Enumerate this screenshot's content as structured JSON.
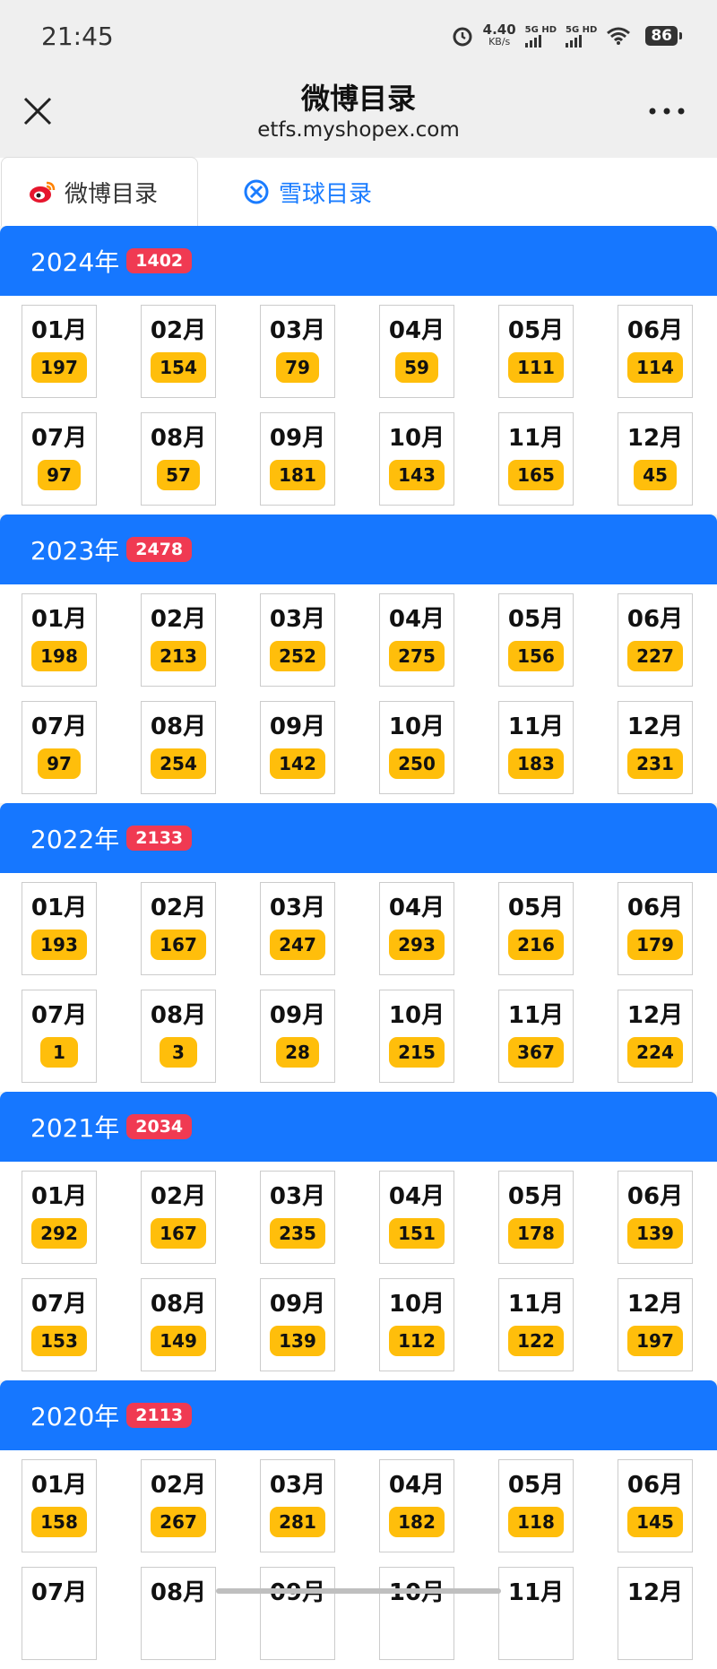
{
  "status": {
    "time": "21:45",
    "speed": "4.40",
    "speed_unit": "KB/s",
    "sig1": "5G HD",
    "sig2": "5G HD",
    "battery": "86"
  },
  "header": {
    "title": "微博目录",
    "url": "etfs.myshopex.com"
  },
  "tabs": [
    {
      "label": "微博目录",
      "active": true
    },
    {
      "label": "雪球目录",
      "active": false
    }
  ],
  "colors": {
    "accent": "#1677ff",
    "badge": "#f03a52",
    "count": "#ffbe0b"
  },
  "years": [
    {
      "year": "2024年",
      "total": "1402",
      "months": [
        {
          "m": "01月",
          "c": "197"
        },
        {
          "m": "02月",
          "c": "154"
        },
        {
          "m": "03月",
          "c": "79"
        },
        {
          "m": "04月",
          "c": "59"
        },
        {
          "m": "05月",
          "c": "111"
        },
        {
          "m": "06月",
          "c": "114"
        },
        {
          "m": "07月",
          "c": "97"
        },
        {
          "m": "08月",
          "c": "57"
        },
        {
          "m": "09月",
          "c": "181"
        },
        {
          "m": "10月",
          "c": "143"
        },
        {
          "m": "11月",
          "c": "165"
        },
        {
          "m": "12月",
          "c": "45"
        }
      ]
    },
    {
      "year": "2023年",
      "total": "2478",
      "months": [
        {
          "m": "01月",
          "c": "198"
        },
        {
          "m": "02月",
          "c": "213"
        },
        {
          "m": "03月",
          "c": "252"
        },
        {
          "m": "04月",
          "c": "275"
        },
        {
          "m": "05月",
          "c": "156"
        },
        {
          "m": "06月",
          "c": "227"
        },
        {
          "m": "07月",
          "c": "97"
        },
        {
          "m": "08月",
          "c": "254"
        },
        {
          "m": "09月",
          "c": "142"
        },
        {
          "m": "10月",
          "c": "250"
        },
        {
          "m": "11月",
          "c": "183"
        },
        {
          "m": "12月",
          "c": "231"
        }
      ]
    },
    {
      "year": "2022年",
      "total": "2133",
      "months": [
        {
          "m": "01月",
          "c": "193"
        },
        {
          "m": "02月",
          "c": "167"
        },
        {
          "m": "03月",
          "c": "247"
        },
        {
          "m": "04月",
          "c": "293"
        },
        {
          "m": "05月",
          "c": "216"
        },
        {
          "m": "06月",
          "c": "179"
        },
        {
          "m": "07月",
          "c": "1"
        },
        {
          "m": "08月",
          "c": "3"
        },
        {
          "m": "09月",
          "c": "28"
        },
        {
          "m": "10月",
          "c": "215"
        },
        {
          "m": "11月",
          "c": "367"
        },
        {
          "m": "12月",
          "c": "224"
        }
      ]
    },
    {
      "year": "2021年",
      "total": "2034",
      "months": [
        {
          "m": "01月",
          "c": "292"
        },
        {
          "m": "02月",
          "c": "167"
        },
        {
          "m": "03月",
          "c": "235"
        },
        {
          "m": "04月",
          "c": "151"
        },
        {
          "m": "05月",
          "c": "178"
        },
        {
          "m": "06月",
          "c": "139"
        },
        {
          "m": "07月",
          "c": "153"
        },
        {
          "m": "08月",
          "c": "149"
        },
        {
          "m": "09月",
          "c": "139"
        },
        {
          "m": "10月",
          "c": "112"
        },
        {
          "m": "11月",
          "c": "122"
        },
        {
          "m": "12月",
          "c": "197"
        }
      ]
    },
    {
      "year": "2020年",
      "total": "2113",
      "months": [
        {
          "m": "01月",
          "c": "158"
        },
        {
          "m": "02月",
          "c": "267"
        },
        {
          "m": "03月",
          "c": "281"
        },
        {
          "m": "04月",
          "c": "182"
        },
        {
          "m": "05月",
          "c": "118"
        },
        {
          "m": "06月",
          "c": "145"
        },
        {
          "m": "07月",
          "c": ""
        },
        {
          "m": "08月",
          "c": ""
        },
        {
          "m": "09月",
          "c": ""
        },
        {
          "m": "10月",
          "c": ""
        },
        {
          "m": "11月",
          "c": ""
        },
        {
          "m": "12月",
          "c": ""
        }
      ]
    }
  ]
}
